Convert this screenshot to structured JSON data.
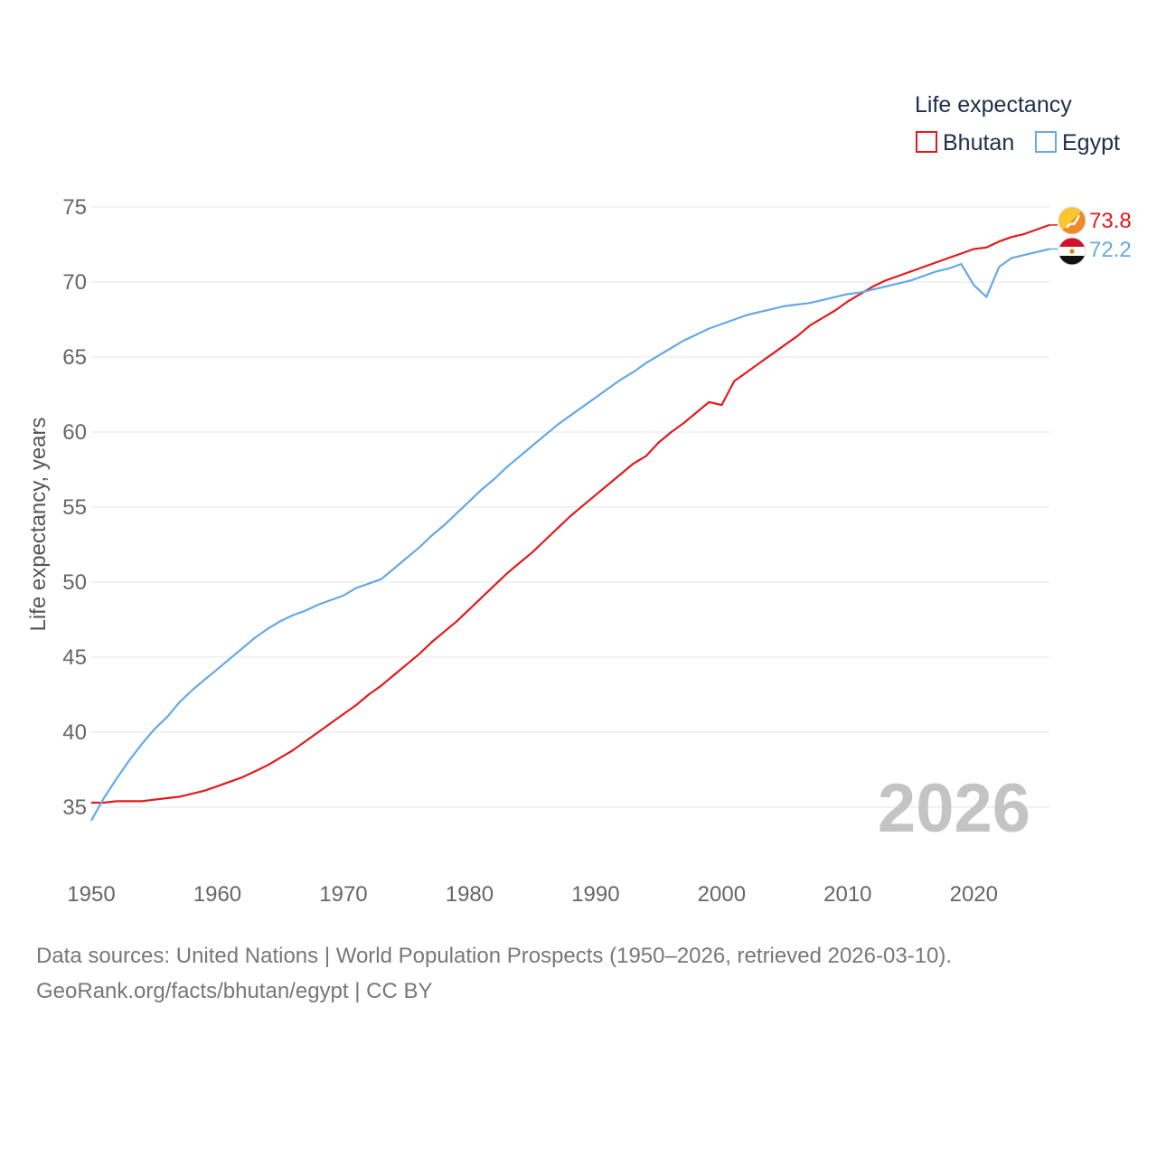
{
  "chart_data": {
    "type": "line",
    "title": "",
    "xlabel": "",
    "ylabel": "Life expectancy, years",
    "xlim": [
      1950,
      2026
    ],
    "ylim": [
      33,
      76
    ],
    "x_ticks": [
      1950,
      1960,
      1970,
      1980,
      1990,
      2000,
      2010,
      2020
    ],
    "y_ticks": [
      35,
      40,
      45,
      50,
      55,
      60,
      65,
      70,
      75
    ],
    "grid": true,
    "legend": {
      "title": "Life expectancy",
      "placement": "top-right"
    },
    "year_label": "2026",
    "x": [
      1950,
      1951,
      1952,
      1953,
      1954,
      1955,
      1956,
      1957,
      1958,
      1959,
      1960,
      1961,
      1962,
      1963,
      1964,
      1965,
      1966,
      1967,
      1968,
      1969,
      1970,
      1971,
      1972,
      1973,
      1974,
      1975,
      1976,
      1977,
      1978,
      1979,
      1980,
      1981,
      1982,
      1983,
      1984,
      1985,
      1986,
      1987,
      1988,
      1989,
      1990,
      1991,
      1992,
      1993,
      1994,
      1995,
      1996,
      1997,
      1998,
      1999,
      2000,
      2001,
      2002,
      2003,
      2004,
      2005,
      2006,
      2007,
      2008,
      2009,
      2010,
      2011,
      2012,
      2013,
      2014,
      2015,
      2016,
      2017,
      2018,
      2019,
      2020,
      2021,
      2022,
      2023,
      2024,
      2025,
      2026
    ],
    "series": [
      {
        "name": "Bhutan",
        "color": "#e31a1c",
        "flag": "bhutan-flag-icon",
        "end_value_label": "73.8",
        "values": [
          35.3,
          35.3,
          35.4,
          35.4,
          35.4,
          35.5,
          35.6,
          35.7,
          35.9,
          36.1,
          36.4,
          36.7,
          37.0,
          37.4,
          37.8,
          38.3,
          38.8,
          39.4,
          40.0,
          40.6,
          41.2,
          41.8,
          42.5,
          43.1,
          43.8,
          44.5,
          45.2,
          46.0,
          46.7,
          47.4,
          48.2,
          49.0,
          49.8,
          50.6,
          51.3,
          52.0,
          52.8,
          53.6,
          54.4,
          55.1,
          55.8,
          56.5,
          57.2,
          57.9,
          58.4,
          59.3,
          60.0,
          60.6,
          61.3,
          62.0,
          61.8,
          63.4,
          64.0,
          64.6,
          65.2,
          65.8,
          66.4,
          67.1,
          67.6,
          68.1,
          68.7,
          69.2,
          69.7,
          70.1,
          70.4,
          70.7,
          71.0,
          71.3,
          71.6,
          71.9,
          72.2,
          72.3,
          72.7,
          73.0,
          73.2,
          73.5,
          73.8
        ]
      },
      {
        "name": "Egypt",
        "color": "#65a9e6",
        "flag": "egypt-flag-icon",
        "end_value_label": "72.2",
        "values": [
          34.1,
          35.6,
          36.9,
          38.1,
          39.2,
          40.2,
          41.0,
          42.0,
          42.8,
          43.5,
          44.2,
          44.9,
          45.6,
          46.3,
          46.9,
          47.4,
          47.8,
          48.1,
          48.5,
          48.8,
          49.1,
          49.6,
          49.9,
          50.2,
          50.9,
          51.6,
          52.3,
          53.1,
          53.8,
          54.6,
          55.4,
          56.2,
          56.9,
          57.7,
          58.4,
          59.1,
          59.8,
          60.5,
          61.1,
          61.7,
          62.3,
          62.9,
          63.5,
          64.0,
          64.6,
          65.1,
          65.6,
          66.1,
          66.5,
          66.9,
          67.2,
          67.5,
          67.8,
          68.0,
          68.2,
          68.4,
          68.5,
          68.6,
          68.8,
          69.0,
          69.2,
          69.3,
          69.5,
          69.7,
          69.9,
          70.1,
          70.4,
          70.7,
          70.9,
          71.2,
          69.8,
          69.0,
          71.0,
          71.6,
          71.8,
          72.0,
          72.2
        ]
      }
    ]
  },
  "footer": {
    "line1": "Data sources: United Nations | World Population Prospects (1950–2026, retrieved 2026-03-10).",
    "line2": "GeoRank.org/facts/bhutan/egypt | CC BY"
  }
}
